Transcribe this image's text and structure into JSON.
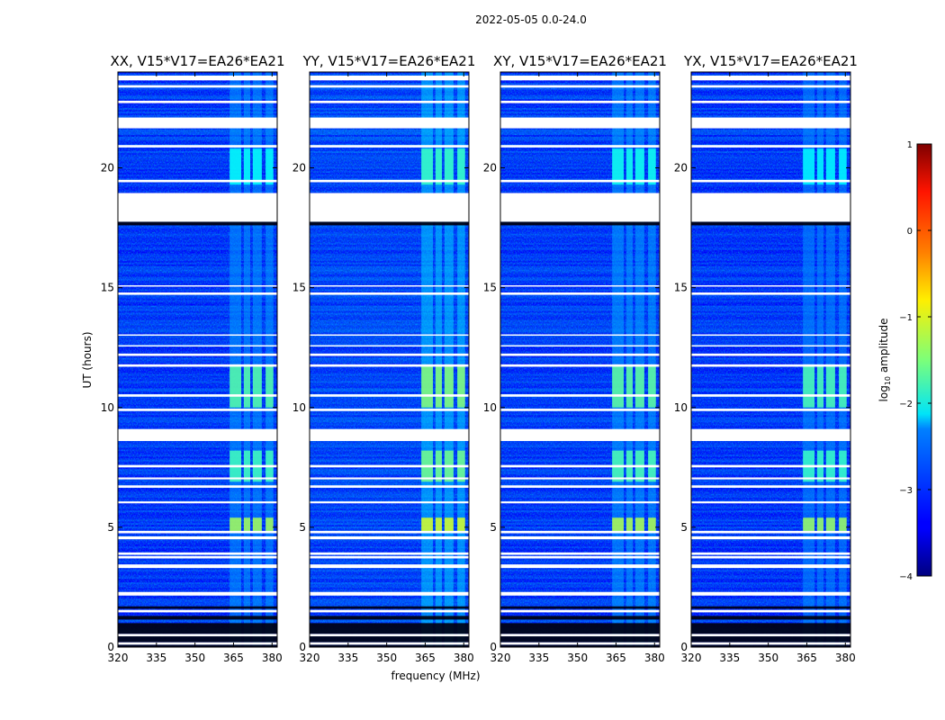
{
  "chart_data": {
    "type": "heatmap",
    "title": "2022-05-05 0.0-24.0",
    "xlabel": "frequency (MHz)",
    "ylabel": "UT (hours)",
    "xlim": [
      320,
      382
    ],
    "ylim": [
      0,
      24
    ],
    "xticks": [
      320,
      335,
      350,
      365,
      380
    ],
    "yticks": [
      0,
      5,
      10,
      15,
      20
    ],
    "x_tick_labels": [
      "320",
      "335",
      "350",
      "365",
      "380"
    ],
    "y_tick_labels": [
      "0",
      "5",
      "10",
      "15",
      "20"
    ],
    "panels": [
      {
        "name": "XX",
        "title": "XX, V15*V17=EA26*EA21"
      },
      {
        "name": "YY",
        "title": "YY, V15*V17=EA26*EA21"
      },
      {
        "name": "XY",
        "title": "XY, V15*V17=EA26*EA21"
      },
      {
        "name": "YX",
        "title": "YX, V15*V17=EA26*EA21"
      }
    ],
    "colorbar": {
      "label_main": "log",
      "label_sub": "10",
      "label_tail": " amplitude",
      "colormap": "jet",
      "range": [
        -4,
        1
      ],
      "ticks": [
        1,
        0,
        -1,
        -2,
        -3,
        -4
      ],
      "tick_labels": [
        "1",
        "0",
        "−1",
        "−2",
        "−3",
        "−4"
      ]
    },
    "background_level": -3.2,
    "rfi_bands_mhz": [
      [
        363.5,
        368
      ],
      [
        369,
        371.5
      ],
      [
        372.5,
        376
      ],
      [
        377.5,
        380.5
      ]
    ],
    "rfi_bright_intervals_ut": [
      [
        4.8,
        5.4
      ],
      [
        6.9,
        8.2
      ],
      [
        10.0,
        11.8
      ],
      [
        19.3,
        20.8
      ]
    ],
    "flagged_intervals_ut": [
      [
        0.1,
        0.2
      ],
      [
        0.45,
        0.55
      ],
      [
        1.45,
        1.55
      ],
      [
        2.15,
        2.3
      ],
      [
        3.3,
        3.45
      ],
      [
        3.7,
        3.8
      ],
      [
        3.85,
        3.95
      ],
      [
        4.5,
        4.62
      ],
      [
        4.75,
        4.85
      ],
      [
        6.0,
        6.08
      ],
      [
        6.65,
        6.75
      ],
      [
        7.0,
        7.08
      ],
      [
        7.5,
        7.6
      ],
      [
        8.6,
        9.1
      ],
      [
        9.85,
        9.95
      ],
      [
        10.45,
        10.55
      ],
      [
        11.7,
        11.8
      ],
      [
        12.15,
        12.25
      ],
      [
        12.55,
        12.6
      ],
      [
        13.0,
        13.05
      ],
      [
        14.7,
        14.8
      ],
      [
        15.05,
        15.1
      ],
      [
        17.75,
        18.95
      ],
      [
        19.4,
        19.5
      ],
      [
        20.85,
        20.95
      ],
      [
        21.65,
        22.1
      ],
      [
        22.7,
        22.8
      ],
      [
        23.35,
        23.45
      ],
      [
        23.65,
        23.85
      ]
    ],
    "dark_intervals_ut": [
      [
        0.0,
        0.1
      ],
      [
        0.2,
        0.45
      ],
      [
        0.55,
        1.0
      ],
      [
        1.15,
        1.3
      ],
      [
        1.6,
        1.7
      ],
      [
        17.6,
        17.75
      ]
    ]
  }
}
